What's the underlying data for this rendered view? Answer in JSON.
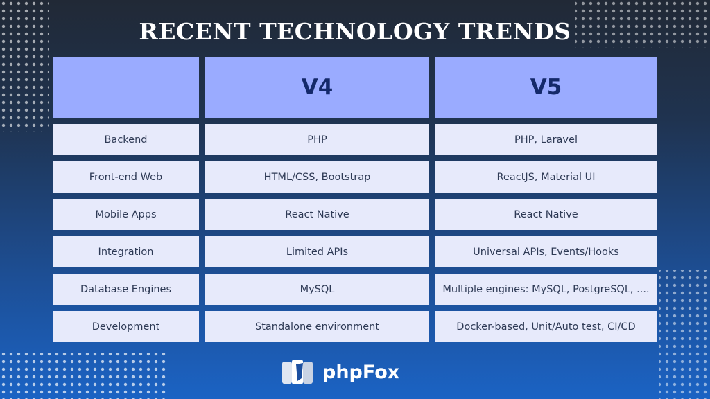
{
  "header": {
    "title": "RECENT TECHNOLOGY TRENDS"
  },
  "table": {
    "columns": [
      "",
      "V4",
      "V5"
    ],
    "rows": [
      [
        "Backend",
        "PHP",
        "PHP, Laravel"
      ],
      [
        "Front-end Web",
        "HTML/CSS, Bootstrap",
        "ReactJS, Material UI"
      ],
      [
        "Mobile Apps",
        "React Native",
        "React Native"
      ],
      [
        "Integration",
        "Limited APIs",
        "Universal APIs, Events/Hooks"
      ],
      [
        "Database Engines",
        "MySQL",
        "Multiple engines: MySQL, PostgreSQL, ...."
      ],
      [
        "Development",
        "Standalone environment",
        "Docker-based, Unit/Auto test, CI/CD"
      ]
    ]
  },
  "footer": {
    "logo": "phpFox"
  }
}
